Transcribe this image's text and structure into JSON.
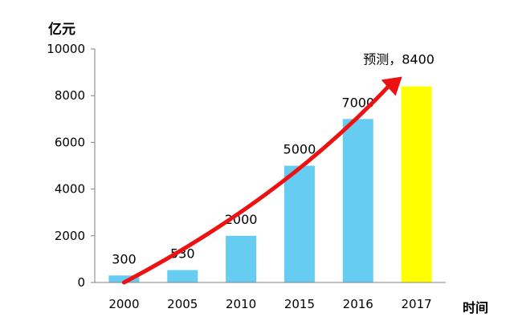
{
  "chart_data": {
    "type": "bar",
    "ylabel": "亿元",
    "xlabel": "时间",
    "categories": [
      "2000",
      "2005",
      "2010",
      "2015",
      "2016",
      "2017"
    ],
    "values": [
      300,
      530,
      2000,
      5000,
      7000,
      8400
    ],
    "data_labels": [
      "300",
      "530",
      "2000",
      "5000",
      "7000",
      "预测，8400"
    ],
    "ylim": [
      0,
      10000
    ],
    "yticks": [
      "0",
      "2000",
      "4000",
      "6000",
      "8000",
      "10000"
    ],
    "grid": false,
    "legend": "none",
    "trend_arrow": true,
    "colors": {
      "bar": "#66CCF2",
      "forecast_bar": "#FFFF00",
      "arrow": "#EE1111",
      "axis": "#7F7F7F",
      "text": "#000000"
    }
  }
}
